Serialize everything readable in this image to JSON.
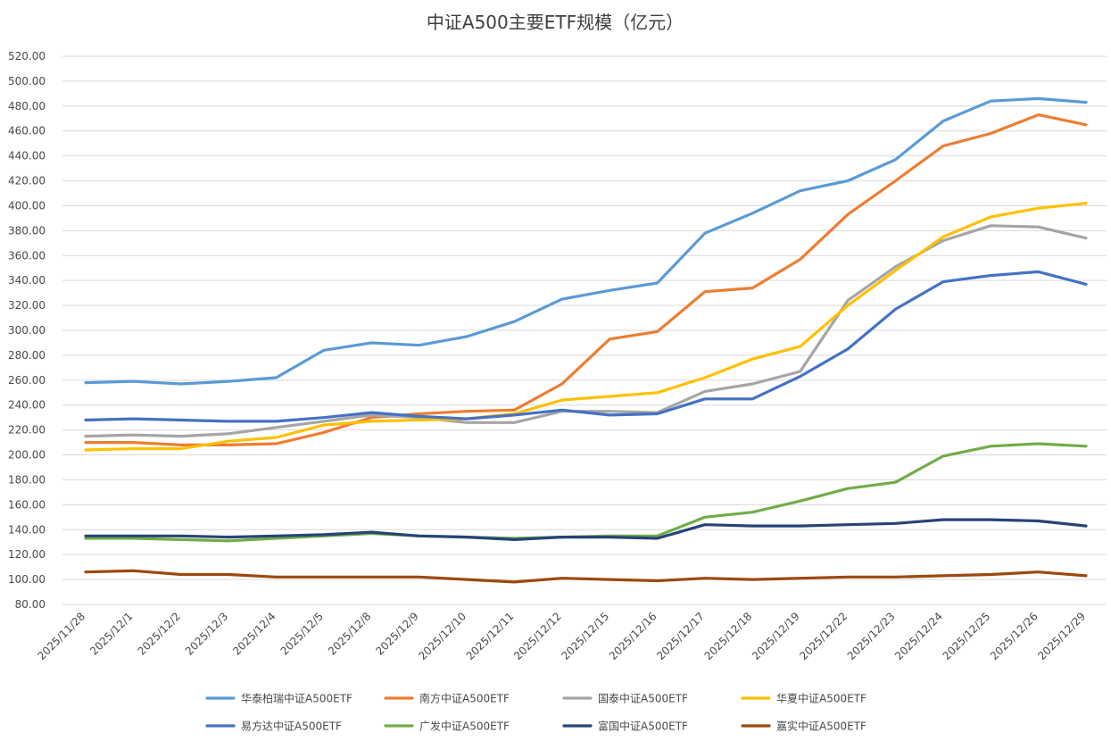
{
  "chart_data": {
    "type": "line",
    "title": "中证A500主要ETF规模（亿元）",
    "xlabel": "",
    "ylabel": "",
    "ylim": [
      80,
      520
    ],
    "yticks": [
      "80.00",
      "100.00",
      "120.00",
      "140.00",
      "160.00",
      "180.00",
      "200.00",
      "220.00",
      "240.00",
      "260.00",
      "280.00",
      "300.00",
      "320.00",
      "340.00",
      "360.00",
      "380.00",
      "400.00",
      "420.00",
      "440.00",
      "460.00",
      "480.00",
      "500.00",
      "520.00"
    ],
    "grid": true,
    "legend": "bottom",
    "categories": [
      "2025/11/28",
      "2025/12/1",
      "2025/12/2",
      "2025/12/3",
      "2025/12/4",
      "2025/12/5",
      "2025/12/8",
      "2025/12/9",
      "2025/12/10",
      "2025/12/11",
      "2025/12/12",
      "2025/12/15",
      "2025/12/16",
      "2025/12/17",
      "2025/12/18",
      "2025/12/19",
      "2025/12/22",
      "2025/12/23",
      "2025/12/24",
      "2025/12/25",
      "2025/12/26",
      "2025/12/29"
    ],
    "series": [
      {
        "name": "华泰柏瑞中证A500ETF",
        "color": "#5B9BD5",
        "values": [
          258,
          259,
          257,
          259,
          262,
          284,
          290,
          288,
          295,
          307,
          325,
          332,
          338,
          378,
          394,
          412,
          420,
          437,
          468,
          484,
          486,
          483
        ]
      },
      {
        "name": "南方中证A500ETF",
        "color": "#ED7D31",
        "values": [
          210,
          210,
          208,
          208,
          209,
          218,
          230,
          233,
          235,
          236,
          257,
          293,
          299,
          331,
          334,
          357,
          393,
          420,
          448,
          458,
          473,
          465
        ]
      },
      {
        "name": "国泰中证A500ETF",
        "color": "#A5A5A5",
        "values": [
          215,
          216,
          215,
          217,
          222,
          227,
          232,
          230,
          226,
          226,
          235,
          235,
          234,
          251,
          257,
          267,
          324,
          351,
          372,
          384,
          383,
          374
        ]
      },
      {
        "name": "华夏中证A500ETF",
        "color": "#FFC000",
        "values": [
          204,
          205,
          205,
          211,
          214,
          224,
          227,
          228,
          229,
          233,
          244,
          247,
          250,
          262,
          277,
          287,
          320,
          348,
          375,
          391,
          398,
          402
        ]
      },
      {
        "name": "易方达中证A500ETF",
        "color": "#4472C4",
        "values": [
          228,
          229,
          228,
          227,
          227,
          230,
          234,
          231,
          229,
          232,
          236,
          232,
          233,
          245,
          245,
          263,
          285,
          317,
          339,
          344,
          347,
          337
        ]
      },
      {
        "name": "广发中证A500ETF",
        "color": "#70AD47",
        "values": [
          133,
          133,
          132,
          131,
          133,
          135,
          137,
          135,
          134,
          133,
          134,
          135,
          135,
          150,
          154,
          163,
          173,
          178,
          199,
          207,
          209,
          207
        ]
      },
      {
        "name": "富国中证A500ETF",
        "color": "#264478",
        "values": [
          135,
          135,
          135,
          134,
          135,
          136,
          138,
          135,
          134,
          132,
          134,
          134,
          133,
          144,
          143,
          143,
          144,
          145,
          148,
          148,
          147,
          143
        ]
      },
      {
        "name": "嘉实中证A500ETF",
        "color": "#9E480E",
        "values": [
          106,
          107,
          104,
          104,
          102,
          102,
          102,
          102,
          100,
          98,
          101,
          100,
          99,
          101,
          100,
          101,
          102,
          102,
          103,
          104,
          106,
          103
        ]
      }
    ]
  }
}
